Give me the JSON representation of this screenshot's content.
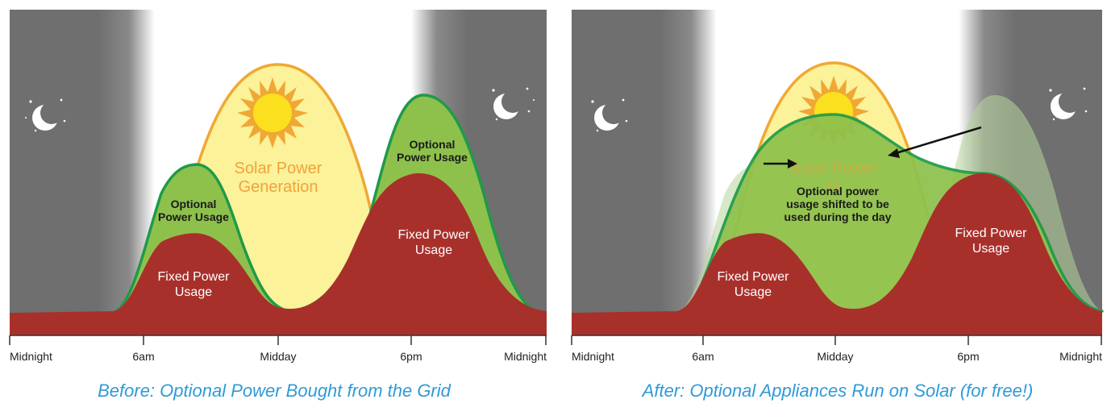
{
  "colors": {
    "night": "#6f6f6f",
    "solar_fill": "#fbf29a",
    "solar_stroke": "#f0a834",
    "optional_fill": "#8ec14c",
    "optional_stroke": "#1f9a4a",
    "fixed_fill": "#a8302b",
    "caption": "#2f9ad8"
  },
  "axis": {
    "ticks": [
      "Midnight",
      "6am",
      "Midday",
      "6pm",
      "Midnight"
    ]
  },
  "icons": {
    "moon": "crescent-moon-icon",
    "sun": "sun-icon"
  },
  "before": {
    "caption": "Before: Optional Power Bought from the Grid",
    "solar_label": [
      "Solar Power",
      "Generation"
    ],
    "optional_morning_label": [
      "Optional",
      "Power Usage"
    ],
    "optional_evening_label": [
      "Optional",
      "Power Usage"
    ],
    "fixed_morning_label": [
      "Fixed Power",
      "Usage"
    ],
    "fixed_evening_label": [
      "Fixed Power",
      "Usage"
    ]
  },
  "after": {
    "caption": "After: Optional Appliances Run on Solar (for free!)",
    "solar_label": [
      "Solar Power",
      "G"
    ],
    "annotation": [
      "Optional power",
      "usage shifted to be",
      "used during the day"
    ],
    "fixed_morning_label": [
      "Fixed Power",
      "Usage"
    ],
    "fixed_evening_label": [
      "Fixed Power",
      "Usage"
    ]
  }
}
